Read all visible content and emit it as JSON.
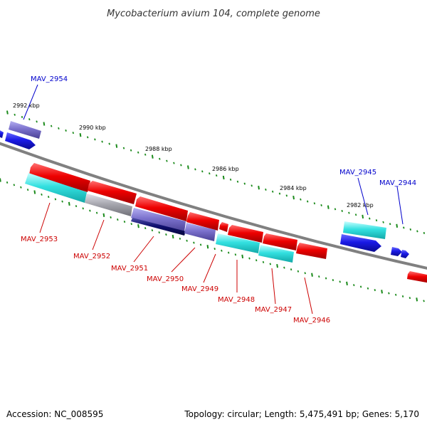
{
  "title": "Mycobacterium avium 104, complete genome",
  "footer": {
    "accession": "Accession: NC_008595",
    "summary": "Topology: circular; Length: 5,475,491 bp; Genes: 5,170"
  },
  "colors": {
    "backbone": "#808080",
    "tick": "#1a8a1a",
    "forward_label": "#0000cc",
    "reverse_label": "#cc0000",
    "red": "#e60000",
    "blue": "#1a1ae6",
    "cyan": "#33e0e0",
    "purple": "#7a70cc",
    "navy": "#101070",
    "grey": "#a8a8b0"
  },
  "scale_labels": [
    "2992 kbp",
    "2990 kbp",
    "2988 kbp",
    "2986 kbp",
    "2984 kbp",
    "2982 kbp"
  ],
  "forward_genes": [
    {
      "label": "MAV_2954"
    },
    {
      "label": "MAV_2945"
    },
    {
      "label": "MAV_2944"
    }
  ],
  "reverse_genes": [
    {
      "label": "MAV_2953"
    },
    {
      "label": "MAV_2952"
    },
    {
      "label": "MAV_2951"
    },
    {
      "label": "MAV_2950"
    },
    {
      "label": "MAV_2949"
    },
    {
      "label": "MAV_2948"
    },
    {
      "label": "MAV_2947"
    },
    {
      "label": "MAV_2946"
    }
  ]
}
